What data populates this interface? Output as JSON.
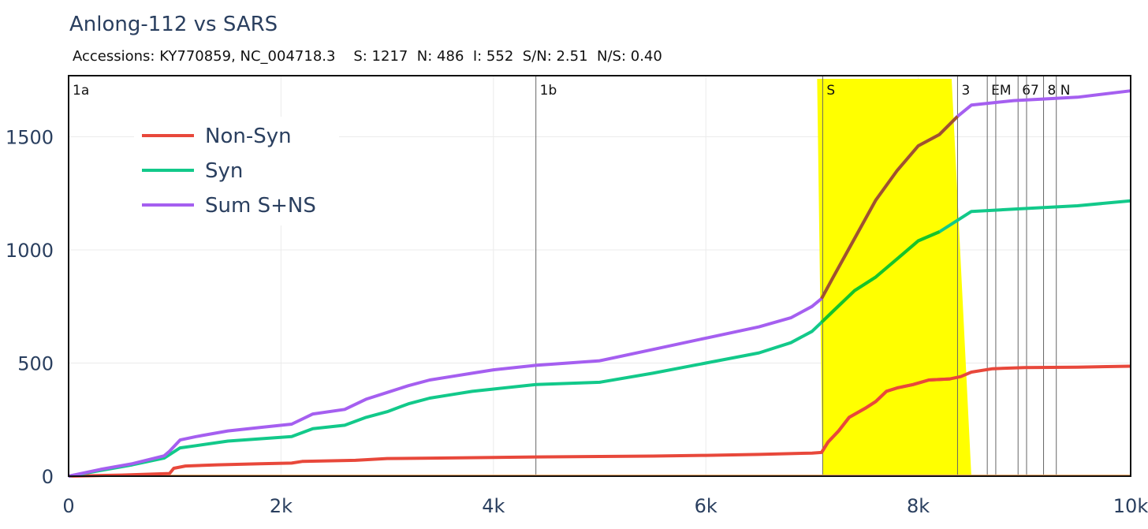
{
  "chart_data": {
    "type": "line",
    "title": "Anlong-112 vs SARS",
    "subtitle": "Accessions: KY770859, NC_004718.3    S: 1217  N: 486  I: 552  S/N: 2.51  N/S: 0.40",
    "xlabel": "",
    "ylabel": "",
    "xlim": [
      0,
      10000
    ],
    "ylim": [
      0,
      1770
    ],
    "x_ticks": [
      0,
      2000,
      4000,
      6000,
      8000,
      10000
    ],
    "x_tick_labels": [
      "0",
      "2k",
      "4k",
      "6k",
      "8k",
      "10k"
    ],
    "y_ticks": [
      0,
      500,
      1000,
      1500
    ],
    "y_tick_labels": [
      "0",
      "500",
      "1000",
      "1500"
    ],
    "grid": true,
    "legend_position": "top-left",
    "highlight_region": {
      "label": "S",
      "x": [
        7100,
        8500
      ],
      "color": "#ffff00"
    },
    "genes": [
      {
        "name": "1a",
        "x": 0
      },
      {
        "name": "1b",
        "x": 4400
      },
      {
        "name": "S",
        "x": 7100
      },
      {
        "name": "3",
        "x": 8370
      },
      {
        "name": "E",
        "x": 8650
      },
      {
        "name": "M",
        "x": 8730
      },
      {
        "name": "6",
        "x": 8940
      },
      {
        "name": "7",
        "x": 9020
      },
      {
        "name": "8",
        "x": 9180
      },
      {
        "name": "N",
        "x": 9300
      }
    ],
    "series": [
      {
        "name": "Non-Syn",
        "color": "#e8483b",
        "x": [
          0,
          500,
          950,
          990,
          1100,
          1400,
          1800,
          2100,
          2200,
          2700,
          3000,
          3500,
          4000,
          4400,
          5000,
          5500,
          6000,
          6500,
          7000,
          7090,
          7150,
          7250,
          7350,
          7500,
          7600,
          7700,
          7800,
          7950,
          8100,
          8300,
          8400,
          8500,
          8700,
          9000,
          9500,
          10000
        ],
        "values": [
          0,
          5,
          12,
          35,
          45,
          50,
          55,
          58,
          65,
          70,
          78,
          80,
          83,
          85,
          87,
          89,
          92,
          96,
          102,
          105,
          150,
          200,
          260,
          300,
          330,
          375,
          390,
          405,
          425,
          430,
          440,
          460,
          475,
          480,
          482,
          486
        ]
      },
      {
        "name": "Syn",
        "color": "#12c98a",
        "x": [
          0,
          300,
          600,
          900,
          950,
          1050,
          1200,
          1500,
          1800,
          2100,
          2300,
          2600,
          2800,
          3000,
          3200,
          3400,
          3600,
          3800,
          4000,
          4200,
          4400,
          5000,
          5500,
          6000,
          6500,
          6800,
          7000,
          7090,
          7200,
          7400,
          7600,
          7800,
          8000,
          8200,
          8400,
          8500,
          8900,
          9500,
          10000
        ],
        "values": [
          0,
          25,
          50,
          80,
          95,
          125,
          135,
          155,
          165,
          175,
          210,
          225,
          260,
          285,
          320,
          345,
          360,
          375,
          385,
          395,
          405,
          415,
          455,
          500,
          545,
          590,
          640,
          680,
          730,
          820,
          880,
          960,
          1040,
          1080,
          1140,
          1170,
          1180,
          1195,
          1217
        ]
      },
      {
        "name": "Sum S+NS",
        "color": "#a55ff0",
        "x": [
          0,
          300,
          600,
          900,
          950,
          1050,
          1200,
          1500,
          1800,
          2100,
          2300,
          2600,
          2800,
          3000,
          3200,
          3400,
          3600,
          3800,
          4000,
          4200,
          4400,
          5000,
          5500,
          6000,
          6500,
          6800,
          7000,
          7090,
          7200,
          7400,
          7600,
          7800,
          8000,
          8200,
          8370,
          8500,
          8900,
          9500,
          10000
        ],
        "values": [
          0,
          30,
          55,
          90,
          110,
          160,
          175,
          200,
          215,
          230,
          275,
          295,
          340,
          370,
          400,
          425,
          440,
          455,
          470,
          480,
          490,
          510,
          560,
          610,
          660,
          700,
          750,
          785,
          880,
          1050,
          1220,
          1350,
          1460,
          1510,
          1590,
          1640,
          1660,
          1675,
          1703
        ]
      }
    ]
  }
}
